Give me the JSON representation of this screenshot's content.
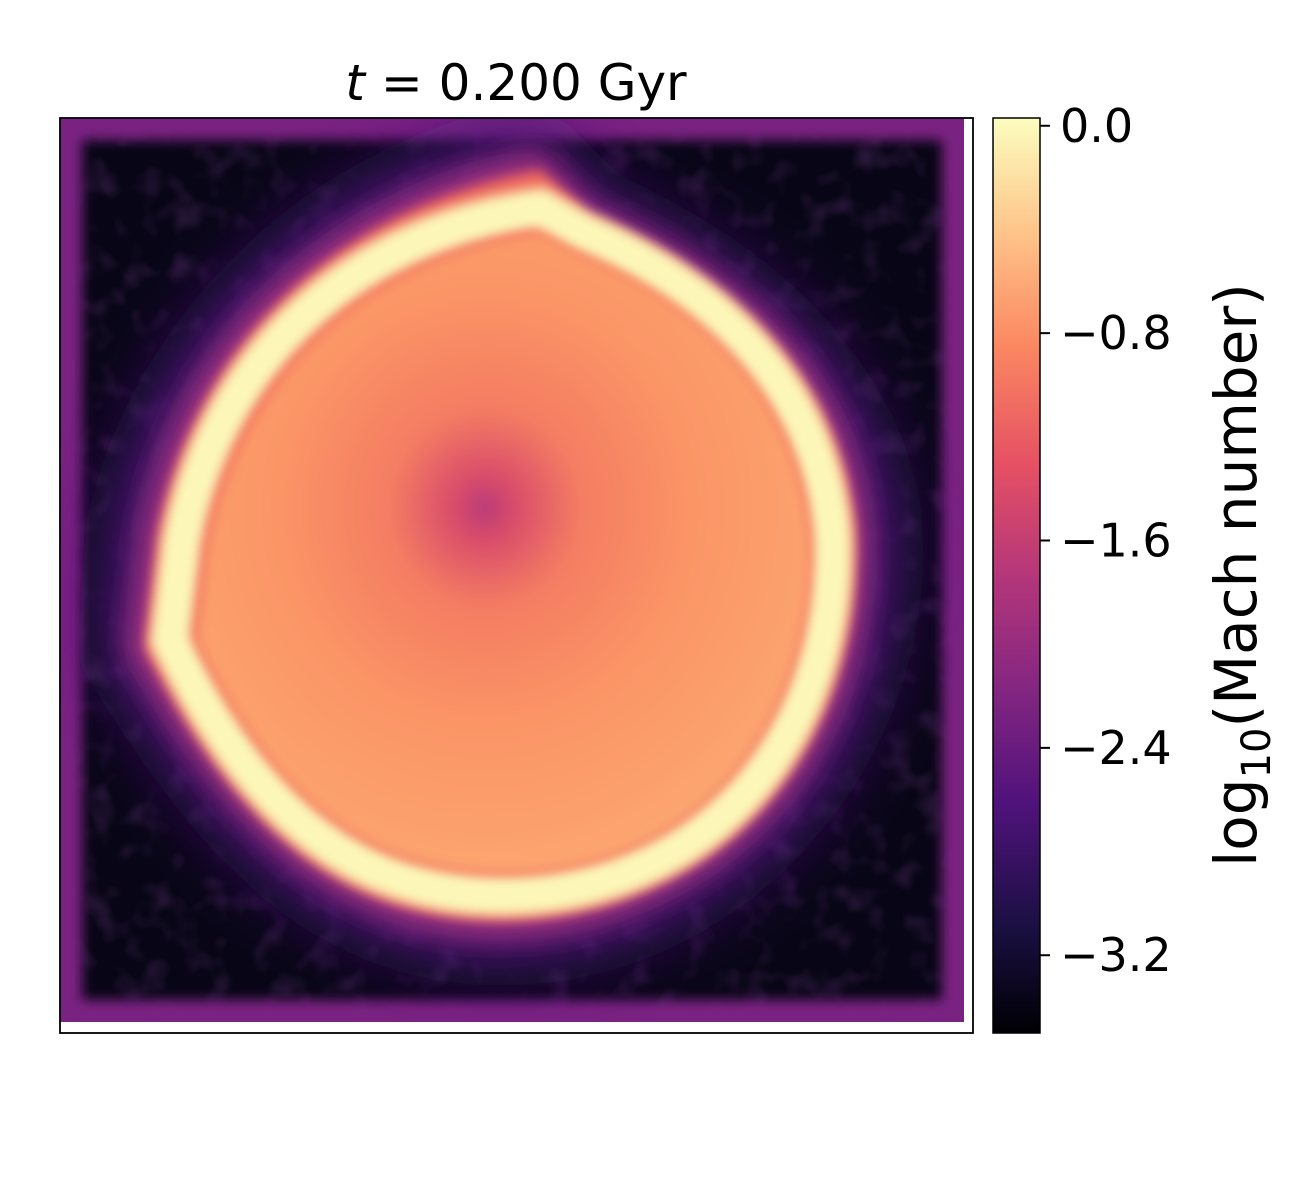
{
  "chart_data": {
    "type": "heatmap",
    "title": {
      "var": "t",
      "eq": " = ",
      "value": "0.200 Gyr"
    },
    "description_of_field": "log10 Mach number map of an expanding spherical shell",
    "colorbar": {
      "label_prefix": "log",
      "label_subscript": "10",
      "label_suffix": "(Mach number)",
      "ticks": [
        0.0,
        -0.8,
        -1.6,
        -2.4,
        -3.2
      ],
      "tick_labels": [
        "0.0",
        "−0.8",
        "−1.6",
        "−2.4",
        "−3.2"
      ],
      "range": [
        -3.5,
        0.03
      ],
      "colormap": "magma",
      "colormap_stops": [
        "#000004",
        "#1c1044",
        "#4f127b",
        "#812581",
        "#b5367a",
        "#e55064",
        "#fb8761",
        "#fec287",
        "#fcfdbf"
      ]
    },
    "field_structure": {
      "background_value": -3.4,
      "border_value": -2.2,
      "center_value": -1.75,
      "interior_value": -0.6,
      "shell_value": 0.0,
      "shell_radius_fraction": 0.38
    },
    "xlabel": "",
    "ylabel": ""
  }
}
